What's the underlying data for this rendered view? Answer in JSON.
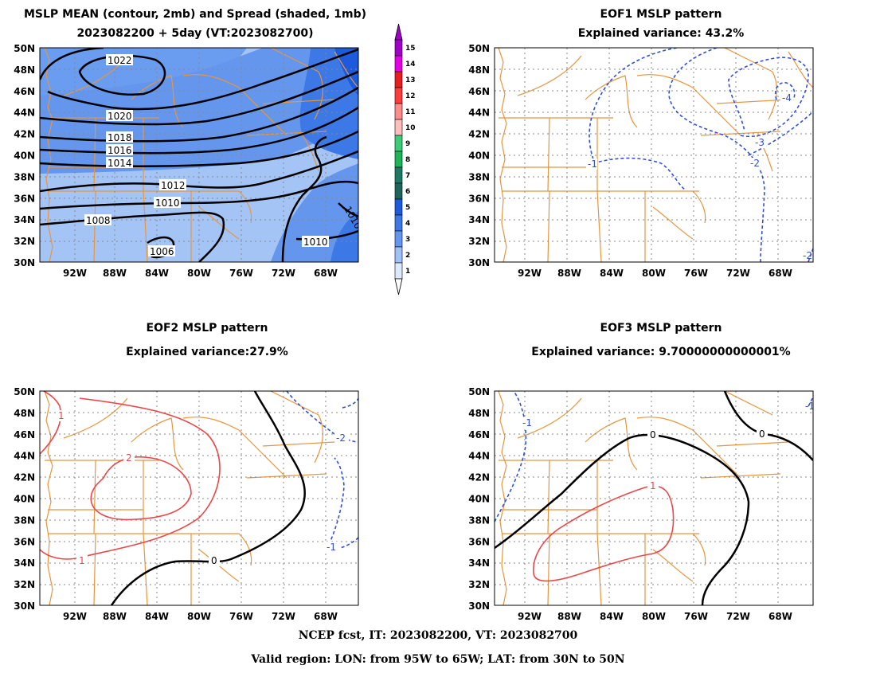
{
  "panels": {
    "mean": {
      "title1": "MSLP MEAN (contour, 2mb) and Spread (shaded, 1mb)",
      "title2": "2023082200 + 5day (VT:2023082700)",
      "contour_labels": [
        "1022",
        "1020",
        "1018",
        "1016",
        "1014",
        "1012",
        "1010",
        "1008",
        "1006",
        "1010",
        "1010"
      ]
    },
    "eof1": {
      "title1": "EOF1 MSLP pattern",
      "title2": "Explained variance: 43.2%",
      "contour_labels": [
        "-1",
        "-2",
        "-3",
        "-4",
        "-2"
      ]
    },
    "eof2": {
      "title1": "EOF2 MSLP pattern",
      "title2": "Explained variance:27.9%",
      "contour_labels": [
        "1",
        "2",
        "1",
        "0",
        "-2",
        "-1"
      ]
    },
    "eof3": {
      "title1": "EOF3 MSLP pattern",
      "title2": "Explained variance: 9.70000000000001%",
      "contour_labels": [
        "-1",
        "0",
        "0",
        "1",
        "-1"
      ]
    }
  },
  "axes": {
    "lat_labels": [
      "50N",
      "48N",
      "46N",
      "44N",
      "42N",
      "40N",
      "38N",
      "36N",
      "34N",
      "32N",
      "30N"
    ],
    "lon_labels": [
      "92W",
      "88W",
      "84W",
      "80W",
      "76W",
      "72W",
      "68W"
    ]
  },
  "colorbar": {
    "labels": [
      "15",
      "14",
      "13",
      "12",
      "11",
      "10",
      "9",
      "8",
      "7",
      "6",
      "5",
      "4",
      "3",
      "2",
      "1"
    ],
    "colors": [
      "#a000c8",
      "#e600e6",
      "#e61e1e",
      "#ff3c3c",
      "#ff8c8c",
      "#ffbebe",
      "#3ccc78",
      "#1eb45a",
      "#1e7864",
      "#1e645a",
      "#1e5adc",
      "#3c78e6",
      "#6496f0",
      "#a0c0f8",
      "#dce8fc"
    ]
  },
  "footer": {
    "line1": "NCEP fcst, IT: 2023082200, VT: 2023082700",
    "line2": "Valid region: LON: from 95W to 65W; LAT: from 30N to 50N"
  },
  "colors": {
    "map_lines": "#e8953c",
    "positive": "#e8484a",
    "negative": "#3050d8",
    "zero": "#000000"
  }
}
